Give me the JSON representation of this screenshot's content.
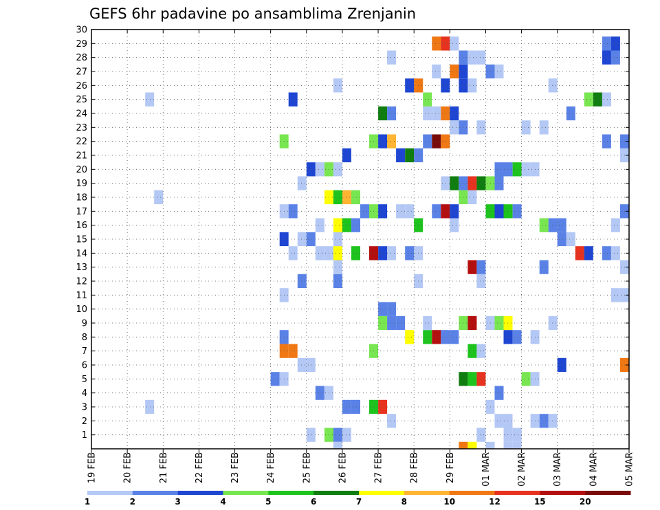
{
  "chart_data": {
    "type": "heatmap",
    "title": "GEFS 6hr padavine po ansamblima Zrenjanin",
    "x_tick_labels": [
      "19 FEB",
      "20 FEB",
      "21 FEB",
      "22 FEB",
      "23 FEB",
      "24 FEB",
      "25 FEB",
      "26 FEB",
      "27 FEB",
      "28 FEB",
      "29 FEB",
      "01 MAR",
      "02 MAR",
      "03 MAR",
      "04 MAR",
      "05 MAR"
    ],
    "y_tick_labels": [
      "1",
      "2",
      "3",
      "4",
      "5",
      "6",
      "7",
      "8",
      "9",
      "10",
      "11",
      "12",
      "13",
      "14",
      "15",
      "16",
      "17",
      "18",
      "19",
      "20",
      "21",
      "22",
      "23",
      "24",
      "25",
      "26",
      "27",
      "28",
      "29",
      "30"
    ],
    "x_range_days": [
      0,
      15
    ],
    "y_range": [
      0,
      30
    ],
    "time_step_hours": 6,
    "grid": "dotted",
    "legend": {
      "position": "bottom",
      "labels": [
        "1",
        "2",
        "3",
        "4",
        "5",
        "6",
        "7",
        "8",
        "10",
        "12",
        "15",
        "20"
      ],
      "colors": [
        "#b4c8f5",
        "#5a82e6",
        "#1e46d2",
        "#78e650",
        "#1ec31e",
        "#0f7d0f",
        "#ffff00",
        "#ffb432",
        "#f07814",
        "#e6321e",
        "#b40f0f",
        "#780a0a"
      ]
    },
    "color_bins": [
      {
        "min": 1,
        "max": 2,
        "color": "#b4c8f5"
      },
      {
        "min": 2,
        "max": 3,
        "color": "#5a82e6"
      },
      {
        "min": 3,
        "max": 4,
        "color": "#1e46d2"
      },
      {
        "min": 4,
        "max": 5,
        "color": "#78e650"
      },
      {
        "min": 5,
        "max": 6,
        "color": "#1ec31e"
      },
      {
        "min": 6,
        "max": 7,
        "color": "#0f7d0f"
      },
      {
        "min": 7,
        "max": 8,
        "color": "#ffff00"
      },
      {
        "min": 8,
        "max": 10,
        "color": "#ffb432"
      },
      {
        "min": 10,
        "max": 12,
        "color": "#f07814"
      },
      {
        "min": 12,
        "max": 15,
        "color": "#e6321e"
      },
      {
        "min": 15,
        "max": 20,
        "color": "#b40f0f"
      },
      {
        "min": 20,
        "max": 30,
        "color": "#780a0a"
      }
    ],
    "cells": [
      [
        1,
        6.0,
        1.5
      ],
      [
        1,
        6.5,
        4.5
      ],
      [
        1,
        6.75,
        2.5
      ],
      [
        1,
        7.0,
        1.5
      ],
      [
        1,
        10.75,
        1.5
      ],
      [
        1,
        11.5,
        1.5
      ],
      [
        1,
        11.75,
        1.5
      ],
      [
        2,
        8.25,
        1.5
      ],
      [
        2,
        11.25,
        1.5
      ],
      [
        2,
        11.5,
        1.5
      ],
      [
        2,
        12.25,
        1.5
      ],
      [
        2,
        12.5,
        2.5
      ],
      [
        2,
        12.75,
        1.5
      ],
      [
        3,
        1.5,
        1.5
      ],
      [
        3,
        7.0,
        2.5
      ],
      [
        3,
        7.25,
        2.5
      ],
      [
        3,
        7.75,
        5.5
      ],
      [
        3,
        8.0,
        12.5
      ],
      [
        3,
        11.0,
        1.5
      ],
      [
        4,
        6.25,
        2.5
      ],
      [
        4,
        6.5,
        1.5
      ],
      [
        4,
        11.25,
        2.5
      ],
      [
        5,
        5.0,
        2.5
      ],
      [
        5,
        5.25,
        1.5
      ],
      [
        5,
        10.25,
        6.5
      ],
      [
        5,
        10.5,
        5.5
      ],
      [
        5,
        10.75,
        12.5
      ],
      [
        5,
        12.0,
        4.5
      ],
      [
        5,
        12.25,
        1.5
      ],
      [
        6,
        5.75,
        1.5
      ],
      [
        6,
        6.0,
        1.5
      ],
      [
        6,
        13.0,
        3.5
      ],
      [
        6,
        14.75,
        10.5
      ],
      [
        7,
        5.25,
        10.5
      ],
      [
        7,
        5.5,
        10.5
      ],
      [
        7,
        7.75,
        4.5
      ],
      [
        7,
        10.5,
        5.5
      ],
      [
        7,
        10.75,
        1.5
      ],
      [
        8,
        5.25,
        2.5
      ],
      [
        8,
        8.75,
        7.5
      ],
      [
        8,
        9.25,
        5.5
      ],
      [
        8,
        9.5,
        15.5
      ],
      [
        8,
        9.75,
        2.5
      ],
      [
        8,
        10.0,
        2.5
      ],
      [
        8,
        11.5,
        3.5
      ],
      [
        8,
        11.75,
        2.5
      ],
      [
        8,
        12.25,
        1.5
      ],
      [
        9,
        8.0,
        4.5
      ],
      [
        9,
        8.25,
        2.5
      ],
      [
        9,
        8.5,
        2.5
      ],
      [
        9,
        9.25,
        1.5
      ],
      [
        9,
        10.25,
        4.5
      ],
      [
        9,
        10.5,
        15.5
      ],
      [
        9,
        11.0,
        1.5
      ],
      [
        9,
        11.25,
        4.5
      ],
      [
        9,
        11.5,
        7.5
      ],
      [
        9,
        12.75,
        1.5
      ],
      [
        10,
        8.0,
        2.5
      ],
      [
        10,
        8.25,
        2.5
      ],
      [
        11,
        5.25,
        1.5
      ],
      [
        11,
        14.5,
        1.5
      ],
      [
        11,
        14.75,
        1.5
      ],
      [
        12,
        5.75,
        2.5
      ],
      [
        12,
        6.75,
        2.5
      ],
      [
        12,
        9.0,
        1.5
      ],
      [
        12,
        10.75,
        1.5
      ],
      [
        13,
        6.75,
        1.5
      ],
      [
        13,
        10.5,
        15.5
      ],
      [
        13,
        10.75,
        2.5
      ],
      [
        13,
        12.5,
        2.5
      ],
      [
        13,
        14.75,
        1.5
      ],
      [
        14,
        5.5,
        1.5
      ],
      [
        14,
        6.25,
        1.5
      ],
      [
        14,
        6.5,
        1.5
      ],
      [
        14,
        6.75,
        7.5
      ],
      [
        14,
        7.25,
        5.5
      ],
      [
        14,
        7.75,
        15.5
      ],
      [
        14,
        8.0,
        3.5
      ],
      [
        14,
        8.25,
        1.5
      ],
      [
        14,
        8.75,
        2.5
      ],
      [
        14,
        9.0,
        1.5
      ],
      [
        14,
        13.5,
        12.5
      ],
      [
        14,
        13.75,
        3.5
      ],
      [
        14,
        14.25,
        2.5
      ],
      [
        14,
        14.5,
        1.5
      ],
      [
        15,
        5.25,
        3.5
      ],
      [
        15,
        5.75,
        1.5
      ],
      [
        15,
        6.0,
        2.5
      ],
      [
        15,
        6.75,
        1.5
      ],
      [
        15,
        13.0,
        2.5
      ],
      [
        15,
        13.25,
        1.5
      ],
      [
        16,
        6.25,
        1.5
      ],
      [
        16,
        6.75,
        7.5
      ],
      [
        16,
        7.0,
        5.5
      ],
      [
        16,
        7.25,
        2.5
      ],
      [
        16,
        9.0,
        5.5
      ],
      [
        16,
        10.0,
        1.5
      ],
      [
        16,
        12.5,
        4.5
      ],
      [
        16,
        12.75,
        2.5
      ],
      [
        16,
        13.0,
        2.5
      ],
      [
        16,
        14.5,
        1.5
      ],
      [
        17,
        5.25,
        1.5
      ],
      [
        17,
        5.5,
        2.5
      ],
      [
        17,
        7.5,
        2.5
      ],
      [
        17,
        7.75,
        4.5
      ],
      [
        17,
        8.0,
        3.5
      ],
      [
        17,
        8.5,
        1.5
      ],
      [
        17,
        8.75,
        1.5
      ],
      [
        17,
        9.5,
        2.5
      ],
      [
        17,
        9.75,
        15.5
      ],
      [
        17,
        10.0,
        3.5
      ],
      [
        17,
        11.0,
        5.5
      ],
      [
        17,
        11.25,
        3.5
      ],
      [
        17,
        11.5,
        5.5
      ],
      [
        17,
        11.75,
        2.5
      ],
      [
        17,
        14.75,
        2.5
      ],
      [
        18,
        1.75,
        1.5
      ],
      [
        18,
        6.5,
        7.5
      ],
      [
        18,
        6.75,
        5.5
      ],
      [
        18,
        7.0,
        8.5
      ],
      [
        18,
        7.25,
        4.5
      ],
      [
        18,
        10.25,
        4.5
      ],
      [
        18,
        10.5,
        1.5
      ],
      [
        19,
        5.75,
        1.5
      ],
      [
        19,
        9.75,
        1.5
      ],
      [
        19,
        10.0,
        6.5
      ],
      [
        19,
        10.25,
        2.5
      ],
      [
        19,
        10.5,
        12.5
      ],
      [
        19,
        10.75,
        6.5
      ],
      [
        19,
        11.0,
        4.5
      ],
      [
        19,
        11.25,
        2.5
      ],
      [
        20,
        6.0,
        3.5
      ],
      [
        20,
        6.25,
        1.5
      ],
      [
        20,
        6.5,
        4.5
      ],
      [
        20,
        6.75,
        1.5
      ],
      [
        20,
        11.25,
        2.5
      ],
      [
        20,
        11.5,
        2.5
      ],
      [
        20,
        11.75,
        5.5
      ],
      [
        20,
        12.0,
        1.5
      ],
      [
        20,
        12.25,
        1.5
      ],
      [
        21,
        7.0,
        3.5
      ],
      [
        21,
        8.5,
        3.5
      ],
      [
        21,
        8.75,
        6.5
      ],
      [
        21,
        9.0,
        2.5
      ],
      [
        21,
        14.75,
        1.5
      ],
      [
        22,
        5.25,
        4.5
      ],
      [
        22,
        7.75,
        4.5
      ],
      [
        22,
        8.0,
        3.5
      ],
      [
        22,
        8.25,
        8.5
      ],
      [
        22,
        9.25,
        2.5
      ],
      [
        22,
        9.5,
        20.5
      ],
      [
        22,
        9.75,
        10.5
      ],
      [
        22,
        14.25,
        2.5
      ],
      [
        22,
        14.75,
        2.5
      ],
      [
        23,
        10.0,
        1.5
      ],
      [
        23,
        10.25,
        2.5
      ],
      [
        23,
        10.75,
        1.5
      ],
      [
        23,
        12.0,
        1.5
      ],
      [
        23,
        12.5,
        1.5
      ],
      [
        24,
        8.0,
        6.5
      ],
      [
        24,
        8.25,
        2.5
      ],
      [
        24,
        9.25,
        1.5
      ],
      [
        24,
        9.5,
        1.5
      ],
      [
        24,
        9.75,
        10.5
      ],
      [
        24,
        10.0,
        3.5
      ],
      [
        24,
        13.25,
        2.5
      ],
      [
        25,
        1.5,
        1.5
      ],
      [
        25,
        5.5,
        3.5
      ],
      [
        25,
        9.25,
        4.5
      ],
      [
        25,
        13.75,
        4.5
      ],
      [
        25,
        14.0,
        6.5
      ],
      [
        25,
        14.25,
        1.5
      ],
      [
        26,
        6.75,
        1.5
      ],
      [
        26,
        8.75,
        3.5
      ],
      [
        26,
        9.0,
        10.5
      ],
      [
        26,
        9.75,
        3.5
      ],
      [
        26,
        10.25,
        3.5
      ],
      [
        26,
        10.5,
        1.5
      ],
      [
        26,
        12.75,
        1.5
      ],
      [
        27,
        9.5,
        1.5
      ],
      [
        27,
        10.0,
        10.5
      ],
      [
        27,
        10.25,
        3.5
      ],
      [
        27,
        11.0,
        2.5
      ],
      [
        27,
        11.25,
        1.5
      ],
      [
        28,
        8.25,
        1.5
      ],
      [
        28,
        10.25,
        2.5
      ],
      [
        28,
        10.5,
        1.5
      ],
      [
        28,
        10.75,
        1.5
      ],
      [
        28,
        14.25,
        3.5
      ],
      [
        28,
        14.5,
        2.5
      ],
      [
        29,
        9.5,
        10.5
      ],
      [
        29,
        9.75,
        12.5
      ],
      [
        29,
        10.0,
        1.5
      ],
      [
        29,
        14.25,
        2.5
      ],
      [
        29,
        14.5,
        3.5
      ],
      [
        0,
        6.75,
        1.5
      ],
      [
        0,
        10.25,
        10.5
      ],
      [
        0,
        10.5,
        7.5
      ],
      [
        0,
        11.0,
        1.5
      ],
      [
        0,
        11.5,
        1.5
      ],
      [
        0,
        11.75,
        1.5
      ]
    ]
  }
}
